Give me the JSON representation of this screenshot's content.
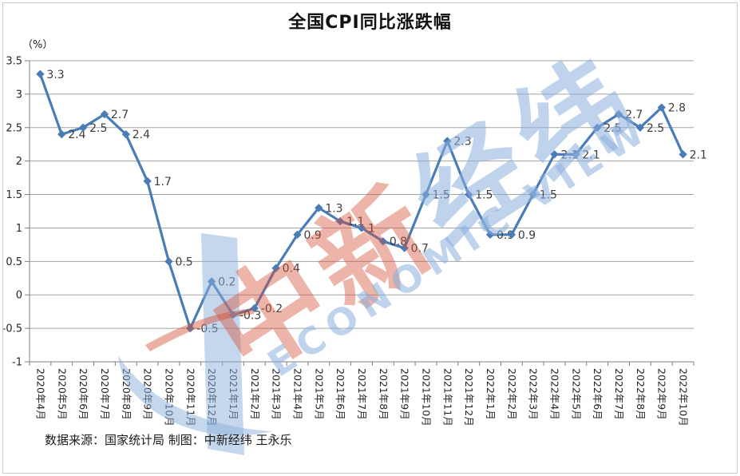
{
  "title": "全国CPI同比涨跌幅",
  "unit_label": "（%）",
  "source_note": "数据来源：国家统计局 制图：中新经纬 王永乐",
  "watermark": {
    "cn_left": "中新",
    "cn_right": "经纬",
    "en": "ECONOMIC VIEW",
    "red_color": "#d34d34",
    "blue_color": "#8cafdc"
  },
  "chart_data": {
    "type": "line",
    "title": "全国CPI同比涨跌幅",
    "ylabel": "（%）",
    "ylim": [
      -1,
      3.5
    ],
    "ytick_labels": [
      "3.5",
      "3",
      "2.5",
      "2",
      "1.5",
      "1",
      "0.5",
      "0",
      "-0.5",
      "-1"
    ],
    "grid": true,
    "legend_position": "none",
    "categories": [
      "2020年4月",
      "2020年5月",
      "2020年6月",
      "2020年7月",
      "2020年8月",
      "2020年9月",
      "2020年10月",
      "2020年11月",
      "2020年12月",
      "2021年1月",
      "2021年2月",
      "2021年3月",
      "2021年4月",
      "2021年5月",
      "2021年6月",
      "2021年7月",
      "2021年8月",
      "2021年9月",
      "2021年10月",
      "2021年11月",
      "2021年12月",
      "2022年1月",
      "2022年2月",
      "2022年3月",
      "2022年4月",
      "2022年5月",
      "2022年6月",
      "2022年7月",
      "2022年8月",
      "2022年9月",
      "2022年10月"
    ],
    "values": [
      3.3,
      2.4,
      2.5,
      2.7,
      2.4,
      1.7,
      0.5,
      -0.5,
      0.2,
      -0.3,
      -0.2,
      0.4,
      0.9,
      1.3,
      1.1,
      1,
      0.8,
      0.7,
      1.5,
      2.3,
      1.5,
      0.9,
      0.9,
      1.5,
      2.1,
      2.1,
      2.5,
      2.7,
      2.5,
      2.8,
      2.1
    ],
    "point_labels": [
      "3.3",
      "2.4",
      "2.5",
      "2.7",
      "2.4",
      "1.7",
      "0.5",
      "-0.5",
      "0.2",
      "-0.3",
      "-0.2",
      "0.4",
      "0.9",
      "1.3",
      "1.1",
      "1",
      "0.8",
      "0.7",
      "1.5",
      "2.3",
      "1.5",
      "0.9",
      "0.9",
      "1.5",
      "2.1",
      "2.1",
      "2.5",
      "2.7",
      "2.5",
      "2.8",
      "2.1"
    ],
    "line_color": "#4a7cb8",
    "marker": "diamond",
    "grid_color": "#a3a3a3",
    "axis_color": "#7f7f7f",
    "data_label_color": "#3d3d3d"
  }
}
